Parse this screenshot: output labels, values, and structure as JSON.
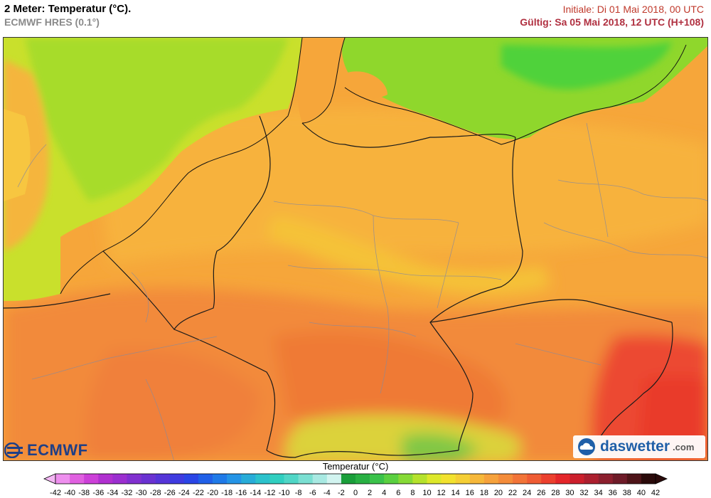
{
  "header": {
    "title": "2 Meter: Temperatur (°C).",
    "model": "ECMWF HRES (0.1°)",
    "init": "Initiale: Di 01 Mai 2018, 00 UTC",
    "valid": "Gültig: Sa 05 Mai 2018, 12 UTC (H+108)"
  },
  "logos": {
    "ecmwf": "ECMWF",
    "daswetter": "daswetter",
    "daswetter_suffix": ".com"
  },
  "scale": {
    "title": "Temperatur (°C)",
    "labels": [
      "-42",
      "-40",
      "-38",
      "-36",
      "-34",
      "-32",
      "-30",
      "-28",
      "-26",
      "-24",
      "-22",
      "-20",
      "-18",
      "-16",
      "-14",
      "-12",
      "-10",
      "-8",
      "-6",
      "-4",
      "-2",
      "0",
      "2",
      "4",
      "6",
      "8",
      "10",
      "12",
      "14",
      "16",
      "18",
      "20",
      "22",
      "24",
      "26",
      "28",
      "30",
      "32",
      "34",
      "36",
      "38",
      "40",
      "42"
    ],
    "colors": [
      "#f4b7f4",
      "#ee8fee",
      "#e060e0",
      "#cc40d8",
      "#b030d0",
      "#9b2fd0",
      "#8130d0",
      "#6a32d2",
      "#5535d8",
      "#3f3be0",
      "#2a45e6",
      "#2060e8",
      "#1f7ae8",
      "#2494e6",
      "#27acd8",
      "#2bc2cc",
      "#30cfc0",
      "#4fd6c6",
      "#7adfd2",
      "#a8e9e2",
      "#d2f4f0",
      "#1a9e3a",
      "#28b043",
      "#3ac24a",
      "#5ad040",
      "#86da36",
      "#b5e22c",
      "#dde82a",
      "#f2e22e",
      "#f5cf35",
      "#f6b83a",
      "#f6a23c",
      "#f48c3a",
      "#f27438",
      "#ef5c34",
      "#ec402e",
      "#e4262a",
      "#cc1f2c",
      "#ac1f2f",
      "#8c1f2e",
      "#6e1b28",
      "#4e1418",
      "#2a0a0a"
    ]
  }
}
